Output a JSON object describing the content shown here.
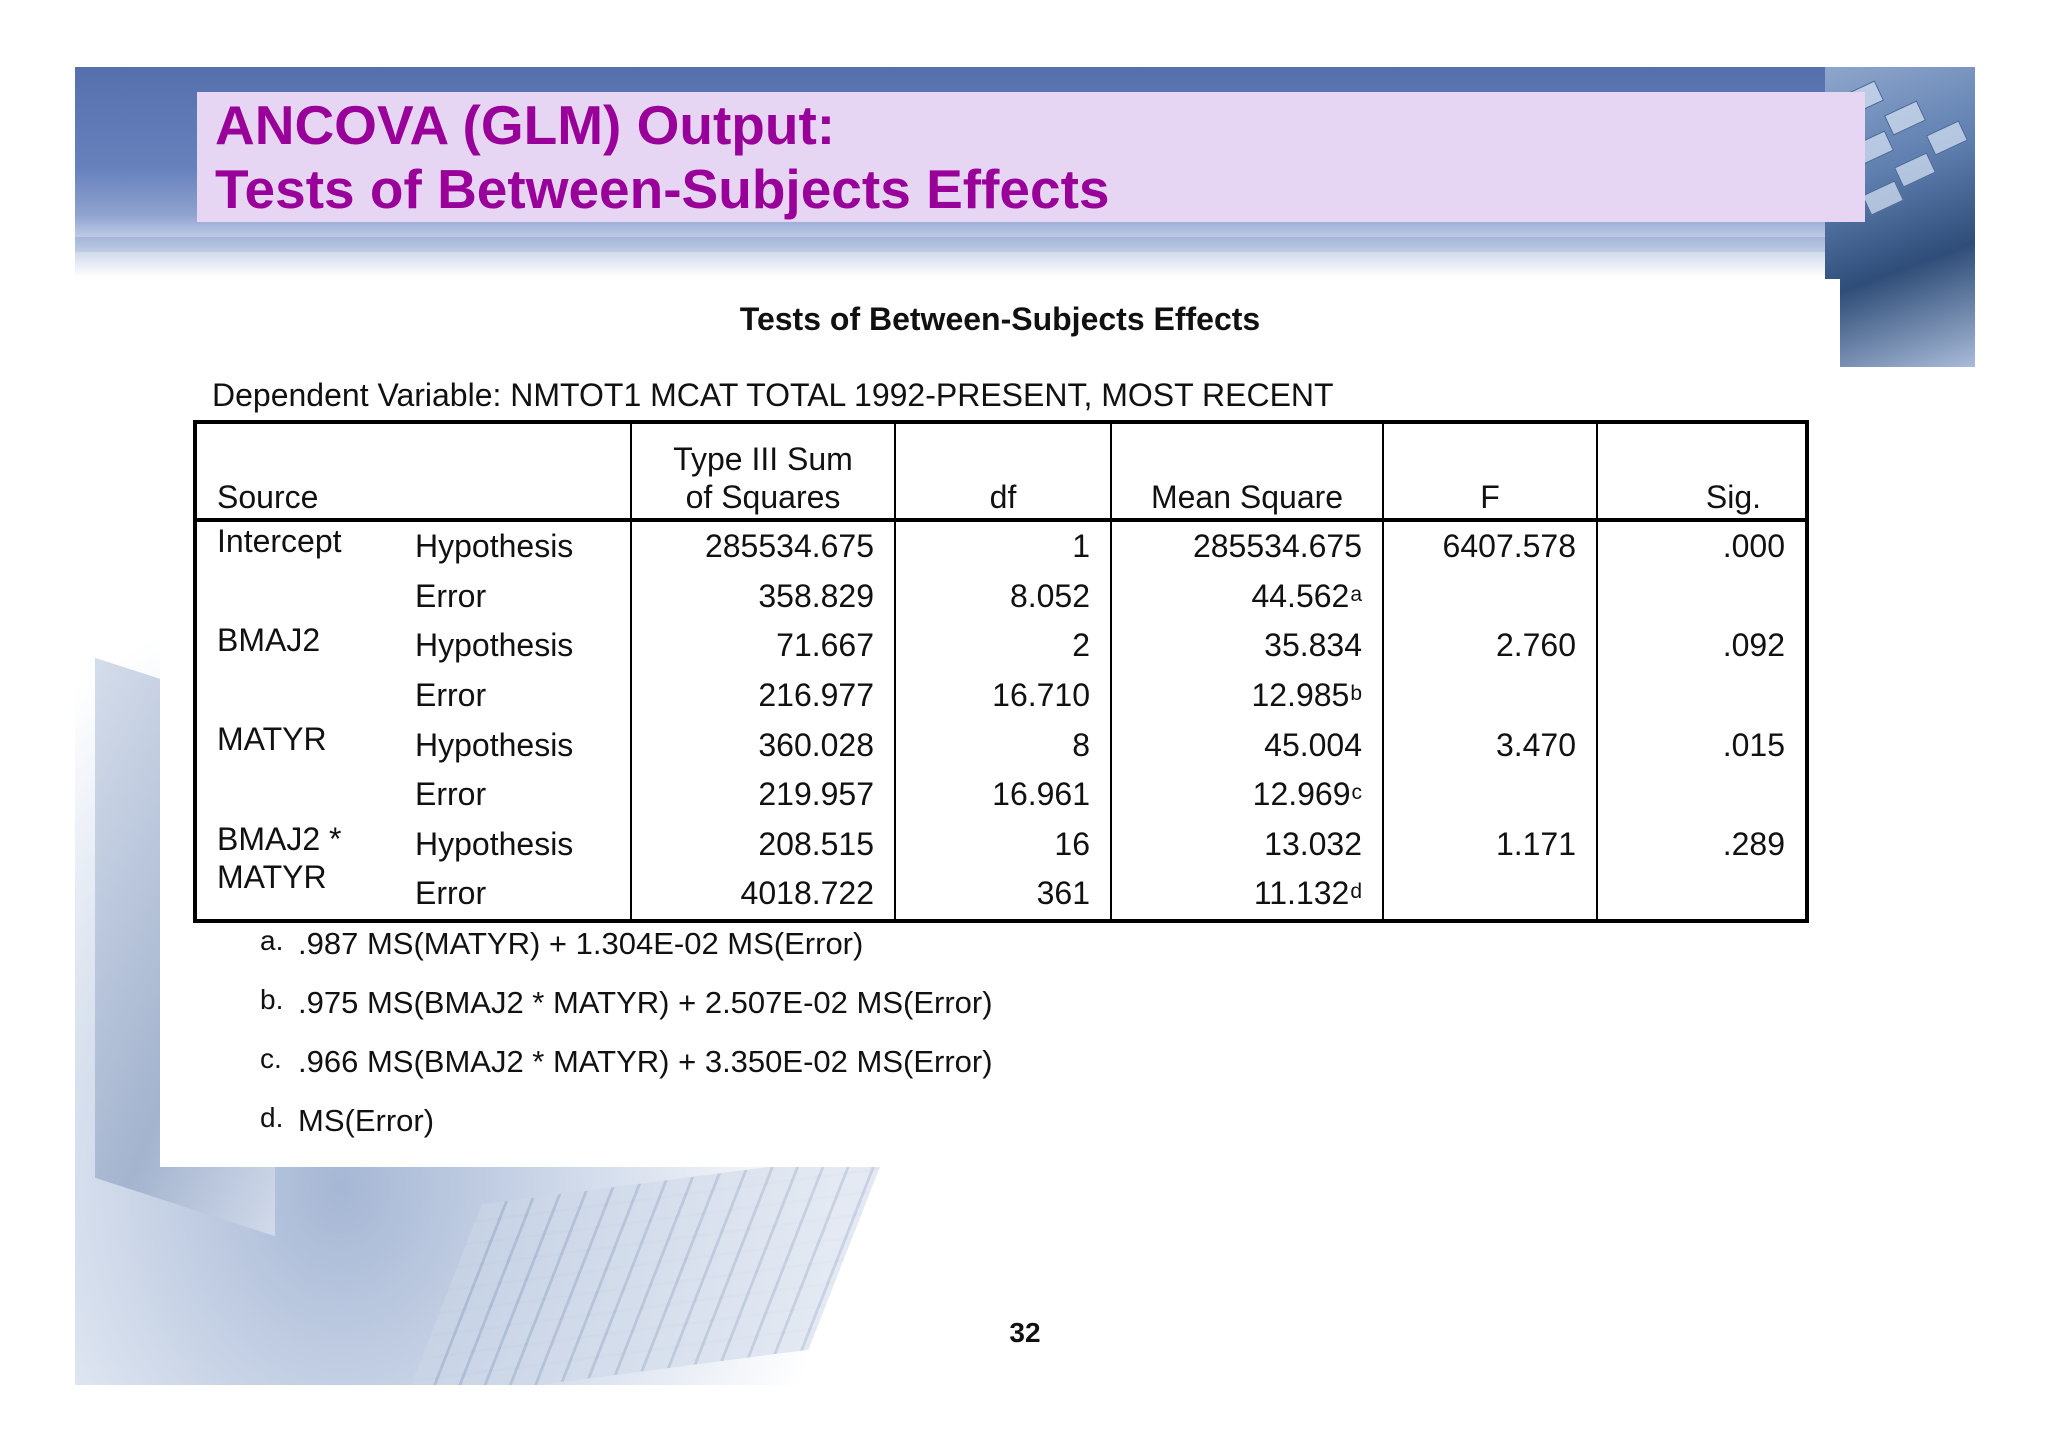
{
  "slide": {
    "title_line1": "ANCOVA (GLM) Output:",
    "title_line2": "Tests of Between-Subjects Effects",
    "page_number": "32",
    "colors": {
      "title": "#990099",
      "title_box": "#e7d6f3",
      "band": "#5570ad"
    }
  },
  "table": {
    "title": "Tests of Between-Subjects Effects",
    "dependent_variable": "Dependent Variable: NMTOT1  MCAT TOTAL 1992-PRESENT, MOST RECENT",
    "headers": {
      "source": "Source",
      "ss_line1": "Type III Sum",
      "ss_line2": "of Squares",
      "df": "df",
      "ms": "Mean Square",
      "f": "F",
      "sig": "Sig."
    },
    "sources": [
      {
        "name": "Intercept",
        "hyp": {
          "label": "Hypothesis",
          "ss": "285534.675",
          "df": "1",
          "ms": "285534.675",
          "f": "6407.578",
          "sig": ".000"
        },
        "err": {
          "label": "Error",
          "ss": "358.829",
          "df": "8.052",
          "ms": "44.562",
          "ms_note": "a"
        }
      },
      {
        "name": "BMAJ2",
        "hyp": {
          "label": "Hypothesis",
          "ss": "71.667",
          "df": "2",
          "ms": "35.834",
          "f": "2.760",
          "sig": ".092"
        },
        "err": {
          "label": "Error",
          "ss": "216.977",
          "df": "16.710",
          "ms": "12.985",
          "ms_note": "b"
        }
      },
      {
        "name": "MATYR",
        "hyp": {
          "label": "Hypothesis",
          "ss": "360.028",
          "df": "8",
          "ms": "45.004",
          "f": "3.470",
          "sig": ".015"
        },
        "err": {
          "label": "Error",
          "ss": "219.957",
          "df": "16.961",
          "ms": "12.969",
          "ms_note": "c"
        }
      },
      {
        "name_line1": "BMAJ2 *",
        "name_line2": "MATYR",
        "hyp": {
          "label": "Hypothesis",
          "ss": "208.515",
          "df": "16",
          "ms": "13.032",
          "f": "1.171",
          "sig": ".289"
        },
        "err": {
          "label": "Error",
          "ss": "4018.722",
          "df": "361",
          "ms": "11.132",
          "ms_note": "d"
        }
      }
    ],
    "footnotes": [
      {
        "letter": "a.",
        "text": ".987 MS(MATYR) + 1.304E-02 MS(Error)"
      },
      {
        "letter": "b.",
        "text": ".975 MS(BMAJ2 * MATYR) + 2.507E-02 MS(Error)"
      },
      {
        "letter": "c.",
        "text": ".966 MS(BMAJ2 * MATYR) + 3.350E-02 MS(Error)"
      },
      {
        "letter": "d.",
        "text": "MS(Error)"
      }
    ]
  }
}
